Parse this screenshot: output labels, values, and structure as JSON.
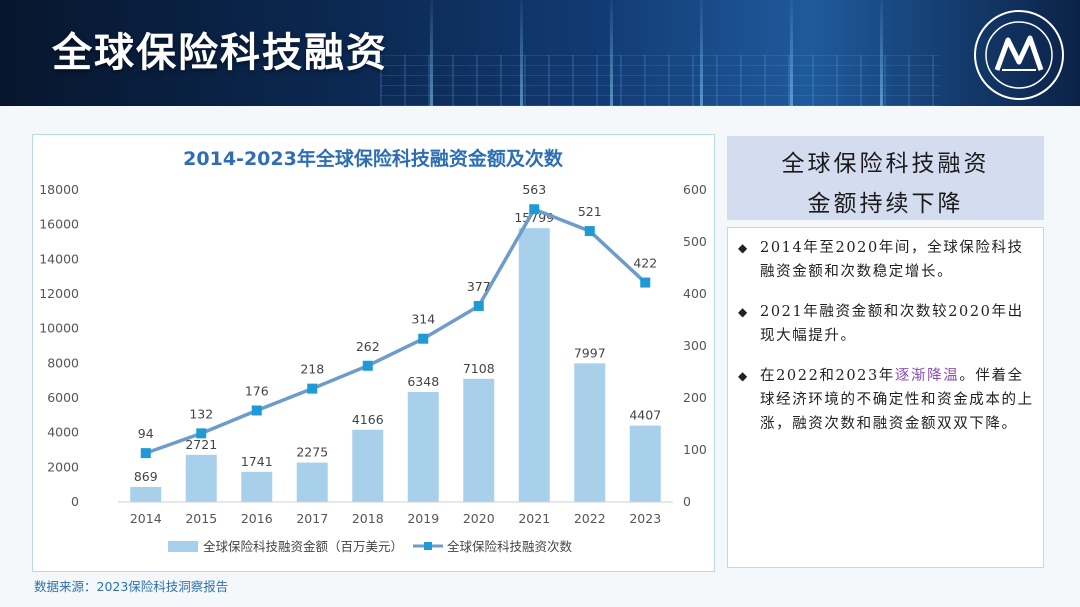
{
  "page_title": "全球保险科技融资",
  "side_panel": {
    "header_lines": [
      "全球保险科技融资",
      "金额持续下降"
    ],
    "bullets": [
      {
        "icon": "diamond-bullet-icon",
        "text_before": "2014年至2020年间，全球保险科技融资金额和次数稳定增长。",
        "highlight": "",
        "text_after": ""
      },
      {
        "icon": "diamond-bullet-icon",
        "text_before": "2021年融资金额和次数较2020年出现大幅提升。",
        "highlight": "",
        "text_after": ""
      },
      {
        "icon": "diamond-bullet-icon",
        "text_before": "在2022和2023年",
        "highlight": "逐渐降温",
        "text_after": "。伴着全球经济环境的不确定性和资金成本的上涨，融资次数和融资金额双双下降。"
      }
    ]
  },
  "source": "数据来源：2023保险科技洞察报告",
  "colors": {
    "bar": "#a8d0ea",
    "line": "#6d9bcb",
    "marker": "#1f9ad6",
    "title": "#2e6eb5",
    "highlight": "#8a4fb3"
  },
  "chart_data": {
    "type": "bar+line",
    "title": "2014-2023年全球保险科技融资金额及次数",
    "categories": [
      "2014",
      "2015",
      "2016",
      "2017",
      "2018",
      "2019",
      "2020",
      "2021",
      "2022",
      "2023"
    ],
    "series": [
      {
        "name": "全球保险科技融资金额（百万美元）",
        "type": "bar",
        "axis": "left",
        "values": [
          869,
          2721,
          1741,
          2275,
          4166,
          6348,
          7108,
          15799,
          7997,
          4407
        ]
      },
      {
        "name": "全球保险科技融资次数",
        "type": "line",
        "axis": "right",
        "values": [
          94,
          132,
          176,
          218,
          262,
          314,
          377,
          563,
          521,
          422
        ]
      }
    ],
    "left_axis": {
      "min": 0,
      "max": 18000,
      "ticks": [
        "0",
        "2000",
        "4000",
        "6000",
        "8000",
        "10000",
        "12000",
        "14000",
        "16000",
        "18000"
      ]
    },
    "right_axis": {
      "min": 0,
      "max": 600,
      "ticks": [
        "0",
        "100",
        "200",
        "300",
        "400",
        "500",
        "600"
      ]
    },
    "legend_position": "bottom",
    "grid": false
  }
}
